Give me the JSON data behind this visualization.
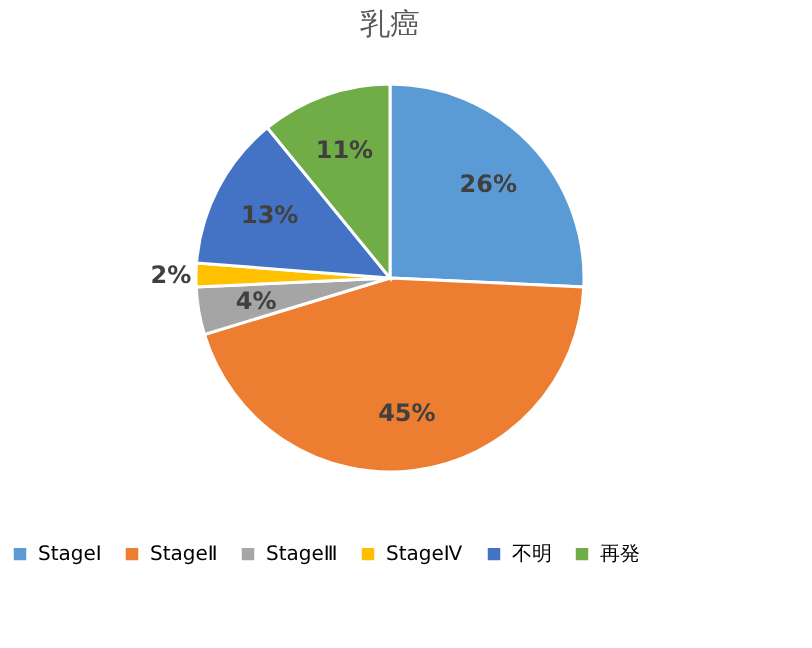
{
  "chart_data": {
    "type": "pie",
    "title": "乳癌",
    "categories": [
      "StageⅠ",
      "StageⅡ",
      "StageⅢ",
      "StageⅣ",
      "不明",
      "再発"
    ],
    "values": [
      26,
      45,
      4,
      2,
      13,
      11
    ],
    "colors": [
      "#5b9bd5",
      "#ed7d31",
      "#a5a5a5",
      "#ffc000",
      "#4472c4",
      "#70ad47"
    ],
    "value_labels": [
      "26%",
      "45%",
      "4%",
      "2%",
      "13%",
      "11%"
    ],
    "legend": "bottom"
  }
}
